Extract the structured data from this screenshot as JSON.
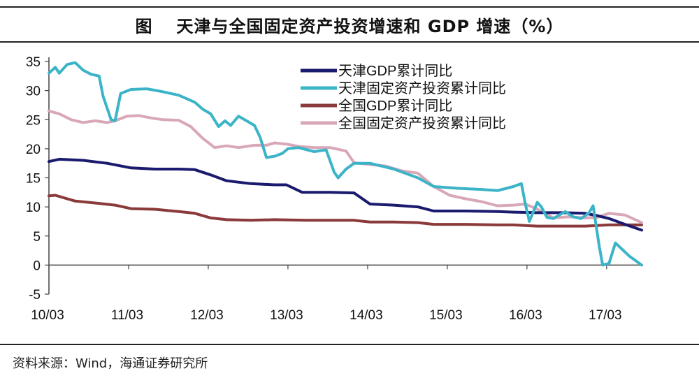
{
  "header": {
    "figure_label": "图",
    "title": "天津与全国固定资产投资增速和 GDP 增速（%）"
  },
  "footer": {
    "source": "资料来源：Wind，海通证券研究所"
  },
  "chart_data": {
    "type": "line",
    "xlabel": "",
    "ylabel": "",
    "x_start": 2010.17,
    "x_end": 2017.61,
    "x_ticks": [
      {
        "label": "10/03",
        "pos": 2010.17
      },
      {
        "label": "11/03",
        "pos": 2011.17
      },
      {
        "label": "12/03",
        "pos": 2012.17
      },
      {
        "label": "13/03",
        "pos": 2013.17
      },
      {
        "label": "14/03",
        "pos": 2014.17
      },
      {
        "label": "15/03",
        "pos": 2015.17
      },
      {
        "label": "16/03",
        "pos": 2016.17
      },
      {
        "label": "17/03",
        "pos": 2017.17
      }
    ],
    "y_ticks": [
      -5,
      0,
      5,
      10,
      15,
      20,
      25,
      30,
      35
    ],
    "ylim": [
      -5,
      35
    ],
    "legend_position": "top-center",
    "series": [
      {
        "name": "天津GDP累计同比",
        "color": "#1a1a6e",
        "points": [
          [
            2010.17,
            17.8
          ],
          [
            2010.3,
            18.2
          ],
          [
            2010.6,
            18.0
          ],
          [
            2010.9,
            17.5
          ],
          [
            2011.2,
            16.7
          ],
          [
            2011.5,
            16.5
          ],
          [
            2011.8,
            16.5
          ],
          [
            2012.0,
            16.4
          ],
          [
            2012.2,
            15.5
          ],
          [
            2012.4,
            14.5
          ],
          [
            2012.7,
            14.0
          ],
          [
            2013.0,
            13.8
          ],
          [
            2013.15,
            13.8
          ],
          [
            2013.35,
            12.5
          ],
          [
            2013.7,
            12.5
          ],
          [
            2014.0,
            12.4
          ],
          [
            2014.2,
            10.5
          ],
          [
            2014.5,
            10.3
          ],
          [
            2014.8,
            10.0
          ],
          [
            2015.0,
            9.3
          ],
          [
            2015.4,
            9.3
          ],
          [
            2015.8,
            9.2
          ],
          [
            2016.0,
            9.1
          ],
          [
            2016.3,
            9.0
          ],
          [
            2016.6,
            9.0
          ],
          [
            2016.9,
            8.9
          ],
          [
            2017.05,
            8.5
          ],
          [
            2017.2,
            8.0
          ],
          [
            2017.4,
            7.0
          ],
          [
            2017.61,
            6.0
          ]
        ]
      },
      {
        "name": "天津固定资产投资累计同比",
        "color": "#3cb4c8",
        "points": [
          [
            2010.17,
            33.0
          ],
          [
            2010.25,
            34.0
          ],
          [
            2010.3,
            33.0
          ],
          [
            2010.4,
            34.5
          ],
          [
            2010.5,
            34.8
          ],
          [
            2010.6,
            33.5
          ],
          [
            2010.7,
            32.8
          ],
          [
            2010.8,
            32.5
          ],
          [
            2010.85,
            29.0
          ],
          [
            2010.95,
            25.0
          ],
          [
            2011.0,
            24.8
          ],
          [
            2011.07,
            29.5
          ],
          [
            2011.2,
            30.2
          ],
          [
            2011.4,
            30.3
          ],
          [
            2011.6,
            29.8
          ],
          [
            2011.8,
            29.2
          ],
          [
            2012.0,
            28.0
          ],
          [
            2012.1,
            26.8
          ],
          [
            2012.2,
            26.0
          ],
          [
            2012.3,
            23.8
          ],
          [
            2012.38,
            24.8
          ],
          [
            2012.45,
            24.0
          ],
          [
            2012.55,
            25.6
          ],
          [
            2012.65,
            24.8
          ],
          [
            2012.75,
            24.0
          ],
          [
            2012.82,
            22.0
          ],
          [
            2012.9,
            18.5
          ],
          [
            2013.0,
            18.7
          ],
          [
            2013.1,
            19.2
          ],
          [
            2013.17,
            20.0
          ],
          [
            2013.3,
            20.2
          ],
          [
            2013.5,
            19.5
          ],
          [
            2013.65,
            19.8
          ],
          [
            2013.75,
            16.0
          ],
          [
            2013.8,
            15.0
          ],
          [
            2013.9,
            16.5
          ],
          [
            2014.0,
            17.5
          ],
          [
            2014.2,
            17.5
          ],
          [
            2014.35,
            17.0
          ],
          [
            2014.5,
            16.5
          ],
          [
            2014.8,
            15.0
          ],
          [
            2015.0,
            13.5
          ],
          [
            2015.3,
            13.2
          ],
          [
            2015.6,
            13.0
          ],
          [
            2015.8,
            12.8
          ],
          [
            2016.0,
            13.5
          ],
          [
            2016.1,
            14.0
          ],
          [
            2016.15,
            10.5
          ],
          [
            2016.2,
            7.5
          ],
          [
            2016.3,
            10.8
          ],
          [
            2016.35,
            10.0
          ],
          [
            2016.42,
            8.2
          ],
          [
            2016.5,
            8.0
          ],
          [
            2016.65,
            9.2
          ],
          [
            2016.75,
            8.3
          ],
          [
            2016.85,
            8.0
          ],
          [
            2016.95,
            9.0
          ],
          [
            2017.0,
            10.2
          ],
          [
            2017.08,
            3.0
          ],
          [
            2017.12,
            0.0
          ],
          [
            2017.2,
            0.3
          ],
          [
            2017.28,
            3.8
          ],
          [
            2017.45,
            1.6
          ],
          [
            2017.61,
            0.0
          ]
        ]
      },
      {
        "name": "全国GDP累计同比",
        "color": "#8b3a3a",
        "points": [
          [
            2010.17,
            11.9
          ],
          [
            2010.25,
            12.0
          ],
          [
            2010.5,
            11.0
          ],
          [
            2010.8,
            10.6
          ],
          [
            2011.0,
            10.3
          ],
          [
            2011.2,
            9.7
          ],
          [
            2011.5,
            9.6
          ],
          [
            2011.8,
            9.2
          ],
          [
            2012.0,
            8.9
          ],
          [
            2012.2,
            8.1
          ],
          [
            2012.4,
            7.8
          ],
          [
            2012.7,
            7.7
          ],
          [
            2013.0,
            7.8
          ],
          [
            2013.4,
            7.7
          ],
          [
            2013.7,
            7.7
          ],
          [
            2014.0,
            7.7
          ],
          [
            2014.2,
            7.4
          ],
          [
            2014.5,
            7.4
          ],
          [
            2014.8,
            7.3
          ],
          [
            2015.0,
            7.0
          ],
          [
            2015.4,
            7.0
          ],
          [
            2015.8,
            6.9
          ],
          [
            2016.0,
            6.9
          ],
          [
            2016.3,
            6.7
          ],
          [
            2016.6,
            6.7
          ],
          [
            2016.9,
            6.7
          ],
          [
            2017.2,
            6.9
          ],
          [
            2017.61,
            6.9
          ]
        ]
      },
      {
        "name": "全国固定资产投资累计同比",
        "color": "#d8a8b8",
        "points": [
          [
            2010.17,
            26.5
          ],
          [
            2010.3,
            26.0
          ],
          [
            2010.45,
            25.0
          ],
          [
            2010.6,
            24.5
          ],
          [
            2010.75,
            24.8
          ],
          [
            2010.9,
            24.5
          ],
          [
            2011.0,
            24.8
          ],
          [
            2011.15,
            25.6
          ],
          [
            2011.3,
            25.7
          ],
          [
            2011.45,
            25.3
          ],
          [
            2011.6,
            25.0
          ],
          [
            2011.8,
            24.9
          ],
          [
            2011.95,
            23.8
          ],
          [
            2012.1,
            21.8
          ],
          [
            2012.25,
            20.2
          ],
          [
            2012.4,
            20.5
          ],
          [
            2012.55,
            20.2
          ],
          [
            2012.75,
            20.6
          ],
          [
            2012.9,
            20.6
          ],
          [
            2013.0,
            21.0
          ],
          [
            2013.15,
            20.8
          ],
          [
            2013.3,
            20.4
          ],
          [
            2013.5,
            20.2
          ],
          [
            2013.7,
            20.2
          ],
          [
            2013.9,
            19.6
          ],
          [
            2014.0,
            17.6
          ],
          [
            2014.2,
            17.3
          ],
          [
            2014.4,
            17.0
          ],
          [
            2014.6,
            16.2
          ],
          [
            2014.8,
            15.8
          ],
          [
            2015.0,
            13.5
          ],
          [
            2015.2,
            12.0
          ],
          [
            2015.4,
            11.4
          ],
          [
            2015.6,
            10.9
          ],
          [
            2015.8,
            10.2
          ],
          [
            2016.0,
            10.3
          ],
          [
            2016.15,
            10.5
          ],
          [
            2016.3,
            9.6
          ],
          [
            2016.5,
            8.1
          ],
          [
            2016.7,
            8.3
          ],
          [
            2016.9,
            8.1
          ],
          [
            2017.05,
            8.2
          ],
          [
            2017.2,
            8.9
          ],
          [
            2017.4,
            8.6
          ],
          [
            2017.61,
            7.3
          ]
        ]
      }
    ]
  }
}
